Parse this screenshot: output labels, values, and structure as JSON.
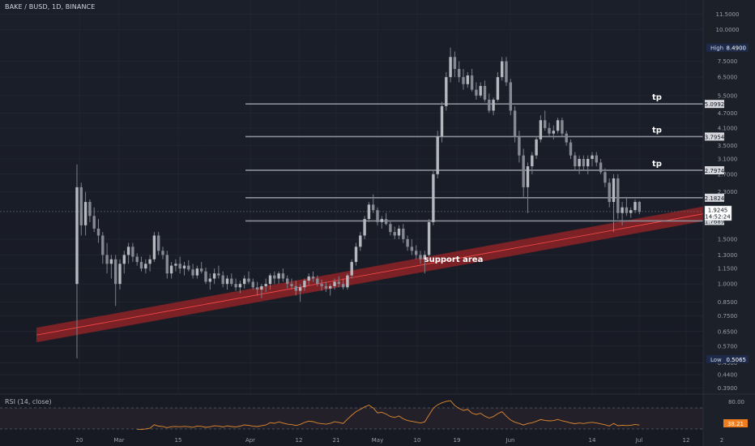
{
  "header": {
    "symbol": "BAKE / BUSD, 1D, BINANCE"
  },
  "rsi": {
    "title": "RSI (14, close)",
    "upper": "80.00",
    "value": "38.21"
  },
  "chart_data": {
    "type": "candlestick",
    "scale": "log",
    "ylim": [
      0.38,
      12.5
    ],
    "price_ticks": [
      "11.5000",
      "10.0000",
      "7.5000",
      "6.5000",
      "5.5000",
      "4.7000",
      "4.1000",
      "3.5000",
      "3.1000",
      "2.7000",
      "2.3000",
      "1.5000",
      "1.3000",
      "1.1500",
      "1.0000",
      "0.8500",
      "0.7500",
      "0.6500",
      "0.5700",
      "0.4900",
      "0.4400",
      "0.3900"
    ],
    "date_ticks": [
      "20",
      "Mar",
      "15",
      "Apr",
      "12",
      "21",
      "May",
      "10",
      "19",
      "Jun",
      "14",
      "Jul",
      "12",
      "2"
    ],
    "badges": {
      "high": {
        "label": "High",
        "value": "8.4900",
        "price": 8.49
      },
      "low": {
        "label": "Low",
        "value": "0.5065",
        "price": 0.5065
      },
      "current": {
        "value": "1.9245",
        "timer": "14:52:24",
        "price": 1.9245
      }
    },
    "levels": [
      {
        "price": 5.0992,
        "label": "5.0992",
        "tag": "tp"
      },
      {
        "price": 3.7954,
        "label": "3.7954",
        "tag": "tp"
      },
      {
        "price": 2.7974,
        "label": "2.7974",
        "tag": "tp"
      },
      {
        "price": 2.1824,
        "label": "2.1824",
        "tag": ""
      },
      {
        "price": 1.7689,
        "label": "1.7689",
        "tag": ""
      }
    ],
    "support": {
      "label": "support area",
      "from": {
        "date": "Feb 10",
        "price": 0.63
      },
      "to": {
        "date": "Jul 2",
        "price": 1.95
      }
    },
    "candles": [
      [
        1.0,
        2.95,
        0.51,
        2.4
      ],
      [
        2.4,
        2.5,
        1.55,
        1.7
      ],
      [
        1.7,
        2.3,
        1.55,
        2.1
      ],
      [
        2.1,
        2.15,
        1.75,
        1.85
      ],
      [
        1.85,
        2.0,
        1.6,
        1.65
      ],
      [
        1.65,
        1.8,
        1.45,
        1.55
      ],
      [
        1.55,
        1.6,
        1.2,
        1.3
      ],
      [
        1.3,
        1.45,
        1.1,
        1.2
      ],
      [
        1.2,
        1.3,
        1.05,
        1.25
      ],
      [
        1.25,
        1.3,
        0.82,
        1.0
      ],
      [
        1.0,
        1.25,
        0.95,
        1.2
      ],
      [
        1.2,
        1.35,
        1.1,
        1.3
      ],
      [
        1.3,
        1.45,
        1.2,
        1.4
      ],
      [
        1.4,
        1.45,
        1.22,
        1.28
      ],
      [
        1.28,
        1.32,
        1.18,
        1.22
      ],
      [
        1.22,
        1.28,
        1.12,
        1.15
      ],
      [
        1.15,
        1.25,
        1.1,
        1.2
      ],
      [
        1.2,
        1.3,
        1.12,
        1.25
      ],
      [
        1.25,
        1.6,
        1.22,
        1.55
      ],
      [
        1.55,
        1.6,
        1.3,
        1.35
      ],
      [
        1.35,
        1.4,
        1.25,
        1.3
      ],
      [
        1.3,
        1.35,
        1.05,
        1.1
      ],
      [
        1.1,
        1.22,
        1.05,
        1.18
      ],
      [
        1.18,
        1.25,
        1.12,
        1.2
      ],
      [
        1.2,
        1.28,
        1.1,
        1.15
      ],
      [
        1.15,
        1.22,
        1.08,
        1.18
      ],
      [
        1.18,
        1.24,
        1.12,
        1.14
      ],
      [
        1.14,
        1.2,
        1.05,
        1.08
      ],
      [
        1.08,
        1.18,
        1.05,
        1.15
      ],
      [
        1.15,
        1.22,
        1.1,
        1.12
      ],
      [
        1.12,
        1.16,
        1.0,
        1.02
      ],
      [
        1.02,
        1.1,
        0.95,
        1.05
      ],
      [
        1.05,
        1.15,
        1.0,
        1.1
      ],
      [
        1.1,
        1.18,
        1.05,
        1.08
      ],
      [
        1.08,
        1.12,
        0.97,
        1.0
      ],
      [
        1.0,
        1.08,
        0.95,
        1.05
      ],
      [
        1.05,
        1.1,
        0.98,
        1.0
      ],
      [
        1.0,
        1.05,
        0.94,
        0.97
      ],
      [
        0.97,
        1.03,
        0.92,
        1.0
      ],
      [
        1.0,
        1.08,
        0.96,
        1.05
      ],
      [
        1.05,
        1.12,
        1.0,
        1.02
      ],
      [
        1.02,
        1.05,
        0.95,
        0.97
      ],
      [
        0.97,
        1.02,
        0.9,
        0.95
      ],
      [
        0.95,
        1.0,
        0.88,
        0.98
      ],
      [
        0.98,
        1.05,
        0.93,
        1.0
      ],
      [
        1.0,
        1.1,
        0.95,
        1.08
      ],
      [
        1.08,
        1.12,
        1.0,
        1.05
      ],
      [
        1.05,
        1.12,
        1.0,
        1.1
      ],
      [
        1.1,
        1.15,
        1.02,
        1.05
      ],
      [
        1.05,
        1.08,
        0.96,
        1.0
      ],
      [
        1.0,
        1.05,
        0.95,
        0.98
      ],
      [
        0.98,
        1.03,
        0.9,
        0.94
      ],
      [
        0.94,
        1.0,
        0.85,
        0.97
      ],
      [
        0.97,
        1.05,
        0.94,
        1.03
      ],
      [
        1.03,
        1.1,
        0.99,
        1.07
      ],
      [
        1.07,
        1.12,
        1.02,
        1.05
      ],
      [
        1.05,
        1.08,
        0.98,
        1.0
      ],
      [
        1.0,
        1.04,
        0.94,
        0.98
      ],
      [
        0.98,
        1.02,
        0.93,
        0.96
      ],
      [
        0.96,
        1.0,
        0.9,
        0.98
      ],
      [
        0.98,
        1.05,
        0.95,
        1.02
      ],
      [
        1.02,
        1.07,
        0.97,
        1.0
      ],
      [
        1.0,
        1.05,
        0.95,
        0.97
      ],
      [
        0.97,
        1.1,
        0.95,
        1.08
      ],
      [
        1.08,
        1.25,
        1.05,
        1.22
      ],
      [
        1.22,
        1.45,
        1.18,
        1.4
      ],
      [
        1.4,
        1.6,
        1.35,
        1.55
      ],
      [
        1.55,
        1.85,
        1.5,
        1.8
      ],
      [
        1.8,
        2.1,
        1.75,
        2.05
      ],
      [
        2.05,
        2.25,
        1.9,
        1.95
      ],
      [
        1.95,
        2.0,
        1.7,
        1.75
      ],
      [
        1.75,
        1.85,
        1.65,
        1.8
      ],
      [
        1.8,
        1.9,
        1.7,
        1.72
      ],
      [
        1.72,
        1.78,
        1.55,
        1.6
      ],
      [
        1.6,
        1.68,
        1.5,
        1.55
      ],
      [
        1.55,
        1.7,
        1.5,
        1.65
      ],
      [
        1.65,
        1.72,
        1.45,
        1.5
      ],
      [
        1.5,
        1.55,
        1.35,
        1.4
      ],
      [
        1.4,
        1.5,
        1.3,
        1.35
      ],
      [
        1.35,
        1.42,
        1.25,
        1.3
      ],
      [
        1.3,
        1.35,
        1.2,
        1.25
      ],
      [
        1.25,
        1.35,
        1.1,
        1.3
      ],
      [
        1.3,
        1.8,
        1.28,
        1.75
      ],
      [
        1.75,
        2.8,
        1.7,
        2.7
      ],
      [
        2.7,
        4.0,
        2.6,
        3.8
      ],
      [
        3.8,
        5.2,
        3.6,
        5.0
      ],
      [
        5.0,
        6.8,
        4.8,
        6.5
      ],
      [
        6.5,
        8.49,
        6.2,
        7.8
      ],
      [
        7.8,
        8.2,
        6.5,
        7.0
      ],
      [
        7.0,
        7.5,
        6.2,
        6.5
      ],
      [
        6.5,
        7.0,
        5.8,
        6.1
      ],
      [
        6.1,
        6.8,
        5.9,
        6.6
      ],
      [
        6.6,
        7.0,
        5.7,
        5.8
      ],
      [
        5.8,
        6.2,
        5.3,
        5.5
      ],
      [
        5.5,
        6.2,
        5.4,
        6.0
      ],
      [
        6.0,
        6.3,
        5.2,
        5.3
      ],
      [
        5.3,
        5.6,
        4.7,
        4.8
      ],
      [
        4.8,
        5.4,
        4.6,
        5.3
      ],
      [
        5.3,
        6.8,
        5.2,
        6.5
      ],
      [
        6.5,
        7.8,
        6.3,
        7.5
      ],
      [
        7.5,
        7.8,
        6.0,
        6.2
      ],
      [
        6.2,
        6.4,
        4.6,
        4.8
      ],
      [
        4.8,
        5.0,
        3.6,
        3.8
      ],
      [
        3.8,
        4.0,
        3.0,
        3.2
      ],
      [
        3.2,
        3.4,
        2.2,
        2.4
      ],
      [
        2.4,
        3.0,
        1.9,
        2.9
      ],
      [
        2.9,
        3.3,
        2.7,
        3.2
      ],
      [
        3.2,
        3.8,
        3.1,
        3.7
      ],
      [
        3.7,
        4.6,
        3.6,
        4.4
      ],
      [
        4.4,
        4.8,
        4.0,
        4.1
      ],
      [
        4.1,
        4.3,
        3.8,
        3.9
      ],
      [
        3.9,
        4.2,
        3.7,
        4.0
      ],
      [
        4.0,
        4.5,
        3.9,
        4.4
      ],
      [
        4.4,
        4.5,
        3.8,
        3.9
      ],
      [
        3.9,
        4.0,
        3.5,
        3.6
      ],
      [
        3.6,
        3.7,
        3.1,
        3.2
      ],
      [
        3.2,
        3.3,
        2.8,
        2.9
      ],
      [
        2.9,
        3.2,
        2.7,
        3.1
      ],
      [
        3.1,
        3.2,
        2.8,
        2.9
      ],
      [
        2.9,
        3.2,
        2.7,
        3.1
      ],
      [
        3.1,
        3.3,
        2.9,
        3.2
      ],
      [
        3.2,
        3.3,
        2.9,
        3.0
      ],
      [
        3.0,
        3.1,
        2.7,
        2.75
      ],
      [
        2.75,
        2.85,
        2.4,
        2.5
      ],
      [
        2.5,
        2.6,
        2.0,
        2.1
      ],
      [
        2.1,
        2.7,
        1.6,
        2.6
      ],
      [
        2.6,
        2.7,
        1.8,
        1.9
      ],
      [
        1.9,
        2.1,
        1.7,
        2.0
      ],
      [
        2.0,
        2.2,
        1.85,
        1.9
      ],
      [
        1.9,
        2.0,
        1.82,
        1.95
      ],
      [
        1.95,
        2.15,
        1.9,
        2.1
      ],
      [
        2.1,
        2.12,
        1.88,
        1.92
      ]
    ]
  },
  "colors": {
    "background": "#1b1f2a",
    "grid": "#262a35",
    "candle_body": "#b6b8bf",
    "candle_wick": "#7c7f89",
    "level_line": "#8b8e97",
    "support_band": "#8e2226",
    "support_line": "#ff4b4b",
    "rsi_line": "#e08a2e",
    "rsi_badge": "#f07d1d",
    "label_bg": "#d7d9de",
    "high_low_bg": "#1e2a4a"
  }
}
